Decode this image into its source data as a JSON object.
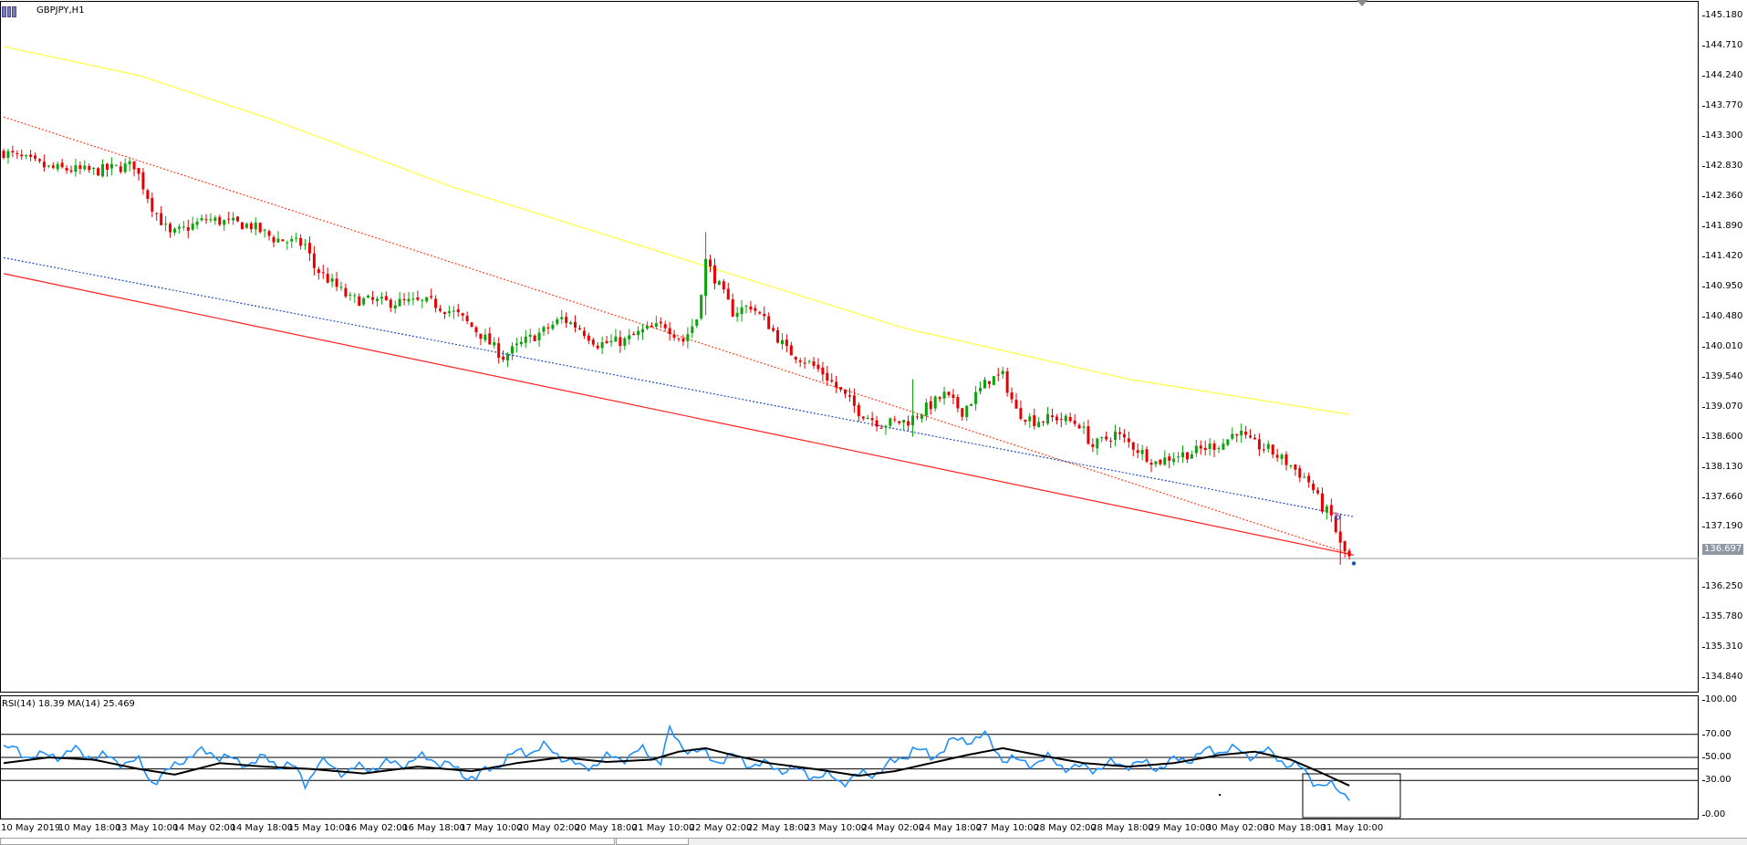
{
  "header": {
    "symbol": "GBPJPY,H1"
  },
  "rsi_header": "RSI(14) 18.39 MA(14) 25.469",
  "price_axis_labels": [
    "145.180",
    "144.710",
    "144.240",
    "143.770",
    "143.300",
    "142.830",
    "142.360",
    "141.890",
    "141.420",
    "140.950",
    "140.480",
    "140.010",
    "139.540",
    "139.070",
    "138.600",
    "138.130",
    "137.660",
    "137.190",
    "136.250",
    "135.780",
    "135.310",
    "134.840"
  ],
  "current_price_label": "136.697",
  "rsi_axis_labels": [
    "100.00",
    "70.00",
    "50.00",
    "30.00",
    "0.00"
  ],
  "colors": {
    "bull": "#0aa30a",
    "bear": "#e60000",
    "ma": "#ffff40",
    "channel_solid": "#ff2020",
    "channel_dotted_red": "#ff4020",
    "channel_dotted_blue": "#2050c0",
    "rsi": "#1e90ff",
    "rsi_ma": "#000000",
    "price_line": "#8e98a3"
  },
  "chart_data": [
    {
      "type": "candlestick",
      "title": "GBPJPY,H1",
      "x_labels": [
        "10 May 2019",
        "10 May 18:00",
        "13 May 10:00",
        "14 May 02:00",
        "14 May 18:00",
        "15 May 10:00",
        "16 May 02:00",
        "16 May 18:00",
        "17 May 10:00",
        "20 May 02:00",
        "20 May 18:00",
        "21 May 10:00",
        "22 May 02:00",
        "22 May 18:00",
        "23 May 10:00",
        "24 May 02:00",
        "24 May 18:00",
        "27 May 10:00",
        "28 May 02:00",
        "28 May 18:00",
        "29 May 10:00",
        "30 May 02:00",
        "30 May 18:00",
        "31 May 10:00"
      ],
      "ylim": [
        134.6,
        145.4
      ],
      "current_price": 136.697,
      "close_path": [
        [
          0,
          143.05
        ],
        [
          10,
          142.8
        ],
        [
          20,
          142.75
        ],
        [
          29,
          142.85
        ],
        [
          33,
          142.2
        ],
        [
          37,
          141.75
        ],
        [
          45,
          142.0
        ],
        [
          55,
          141.9
        ],
        [
          60,
          141.7
        ],
        [
          67,
          141.6
        ],
        [
          69,
          141.25
        ],
        [
          73,
          141.0
        ],
        [
          77,
          140.75
        ],
        [
          85,
          140.7
        ],
        [
          95,
          140.7
        ],
        [
          101,
          140.5
        ],
        [
          106,
          140.2
        ],
        [
          111,
          139.85
        ],
        [
          116,
          140.1
        ],
        [
          120,
          140.25
        ],
        [
          124,
          140.45
        ],
        [
          128,
          140.3
        ],
        [
          132,
          140.05
        ],
        [
          138,
          140.1
        ],
        [
          142,
          140.25
        ],
        [
          147,
          140.35
        ],
        [
          151,
          140.1
        ],
        [
          154,
          140.45
        ],
        [
          156,
          141.35
        ],
        [
          159,
          140.95
        ],
        [
          162,
          140.55
        ],
        [
          166,
          140.65
        ],
        [
          170,
          140.35
        ],
        [
          174,
          139.95
        ],
        [
          178,
          139.8
        ],
        [
          182,
          139.6
        ],
        [
          186,
          139.3
        ],
        [
          190,
          139.0
        ],
        [
          195,
          138.8
        ],
        [
          201,
          138.85
        ],
        [
          206,
          139.1
        ],
        [
          209,
          139.25
        ],
        [
          213,
          139.0
        ],
        [
          216,
          139.25
        ],
        [
          219,
          139.5
        ],
        [
          222,
          139.55
        ],
        [
          225,
          139.0
        ],
        [
          229,
          138.85
        ],
        [
          234,
          138.9
        ],
        [
          239,
          138.8
        ],
        [
          242,
          138.45
        ],
        [
          247,
          138.65
        ],
        [
          252,
          138.4
        ],
        [
          256,
          138.2
        ],
        [
          260,
          138.3
        ],
        [
          264,
          138.35
        ],
        [
          268,
          138.45
        ],
        [
          271,
          138.5
        ],
        [
          274,
          138.7
        ],
        [
          277,
          138.5
        ],
        [
          281,
          138.4
        ],
        [
          286,
          138.15
        ],
        [
          290,
          137.9
        ],
        [
          293,
          137.5
        ],
        [
          295,
          137.35
        ],
        [
          297,
          136.9
        ],
        [
          299,
          136.7
        ]
      ],
      "anomalies": [
        [
          156,
          141.8,
          140.5
        ],
        [
          202,
          139.5,
          138.6
        ],
        [
          297,
          137.4,
          136.6
        ]
      ],
      "moving_average": [
        [
          0,
          144.7
        ],
        [
          30,
          144.25
        ],
        [
          60,
          143.55
        ],
        [
          100,
          142.5
        ],
        [
          150,
          141.4
        ],
        [
          200,
          140.3
        ],
        [
          250,
          139.5
        ],
        [
          299,
          138.95
        ]
      ],
      "trendlines": [
        {
          "style": "solid",
          "color": "channel_solid",
          "from": [
            0,
            141.15
          ],
          "to": [
            300,
            136.75
          ]
        },
        {
          "style": "dotted",
          "color": "channel_dotted_red",
          "from": [
            0,
            143.6
          ],
          "to": [
            300,
            136.75
          ]
        },
        {
          "style": "dotted",
          "color": "channel_dotted_blue",
          "from": [
            0,
            141.4
          ],
          "to": [
            300,
            137.35
          ]
        }
      ],
      "legend": "none",
      "grid": false
    },
    {
      "type": "line",
      "title": "RSI(14) 18.39 MA(14) 25.469",
      "ylim": [
        0,
        100
      ],
      "levels": [
        70,
        50,
        40,
        30
      ],
      "series": [
        {
          "name": "RSI(14)",
          "color": "rsi",
          "points": [
            [
              0,
              58
            ],
            [
              8,
              50
            ],
            [
              16,
              55
            ],
            [
              24,
              48
            ],
            [
              30,
              45
            ],
            [
              33,
              30
            ],
            [
              36,
              35
            ],
            [
              40,
              50
            ],
            [
              46,
              55
            ],
            [
              52,
              45
            ],
            [
              58,
              48
            ],
            [
              64,
              42
            ],
            [
              67,
              28
            ],
            [
              70,
              45
            ],
            [
              76,
              38
            ],
            [
              82,
              42
            ],
            [
              88,
              45
            ],
            [
              95,
              50
            ],
            [
              100,
              40
            ],
            [
              105,
              32
            ],
            [
              110,
              45
            ],
            [
              115,
              55
            ],
            [
              120,
              58
            ],
            [
              124,
              52
            ],
            [
              128,
              40
            ],
            [
              133,
              48
            ],
            [
              137,
              50
            ],
            [
              142,
              55
            ],
            [
              146,
              48
            ],
            [
              148,
              72
            ],
            [
              150,
              62
            ],
            [
              154,
              55
            ],
            [
              158,
              48
            ],
            [
              162,
              50
            ],
            [
              166,
              45
            ],
            [
              170,
              42
            ],
            [
              174,
              40
            ],
            [
              180,
              35
            ],
            [
              186,
              30
            ],
            [
              192,
              35
            ],
            [
              198,
              45
            ],
            [
              202,
              58
            ],
            [
              206,
              50
            ],
            [
              210,
              62
            ],
            [
              214,
              66
            ],
            [
              218,
              68
            ],
            [
              222,
              50
            ],
            [
              226,
              45
            ],
            [
              232,
              48
            ],
            [
              238,
              40
            ],
            [
              244,
              42
            ],
            [
              250,
              45
            ],
            [
              256,
              42
            ],
            [
              262,
              48
            ],
            [
              268,
              55
            ],
            [
              272,
              58
            ],
            [
              276,
              52
            ],
            [
              280,
              55
            ],
            [
              284,
              48
            ],
            [
              288,
              40
            ],
            [
              292,
              28
            ],
            [
              296,
              22
            ],
            [
              299,
              18.39
            ]
          ]
        },
        {
          "name": "MA(14)",
          "color": "rsi_ma",
          "points": [
            [
              0,
              45
            ],
            [
              10,
              50
            ],
            [
              20,
              48
            ],
            [
              30,
              40
            ],
            [
              38,
              35
            ],
            [
              48,
              45
            ],
            [
              58,
              42
            ],
            [
              68,
              40
            ],
            [
              80,
              36
            ],
            [
              92,
              42
            ],
            [
              104,
              38
            ],
            [
              114,
              45
            ],
            [
              124,
              50
            ],
            [
              134,
              46
            ],
            [
              144,
              48
            ],
            [
              150,
              55
            ],
            [
              156,
              58
            ],
            [
              162,
              52
            ],
            [
              170,
              45
            ],
            [
              180,
              40
            ],
            [
              190,
              34
            ],
            [
              198,
              38
            ],
            [
              206,
              45
            ],
            [
              214,
              52
            ],
            [
              222,
              58
            ],
            [
              230,
              52
            ],
            [
              240,
              45
            ],
            [
              250,
              42
            ],
            [
              260,
              45
            ],
            [
              270,
              52
            ],
            [
              278,
              55
            ],
            [
              286,
              48
            ],
            [
              292,
              38
            ],
            [
              299,
              25.469
            ]
          ]
        }
      ],
      "legend": "none",
      "grid": false
    }
  ]
}
